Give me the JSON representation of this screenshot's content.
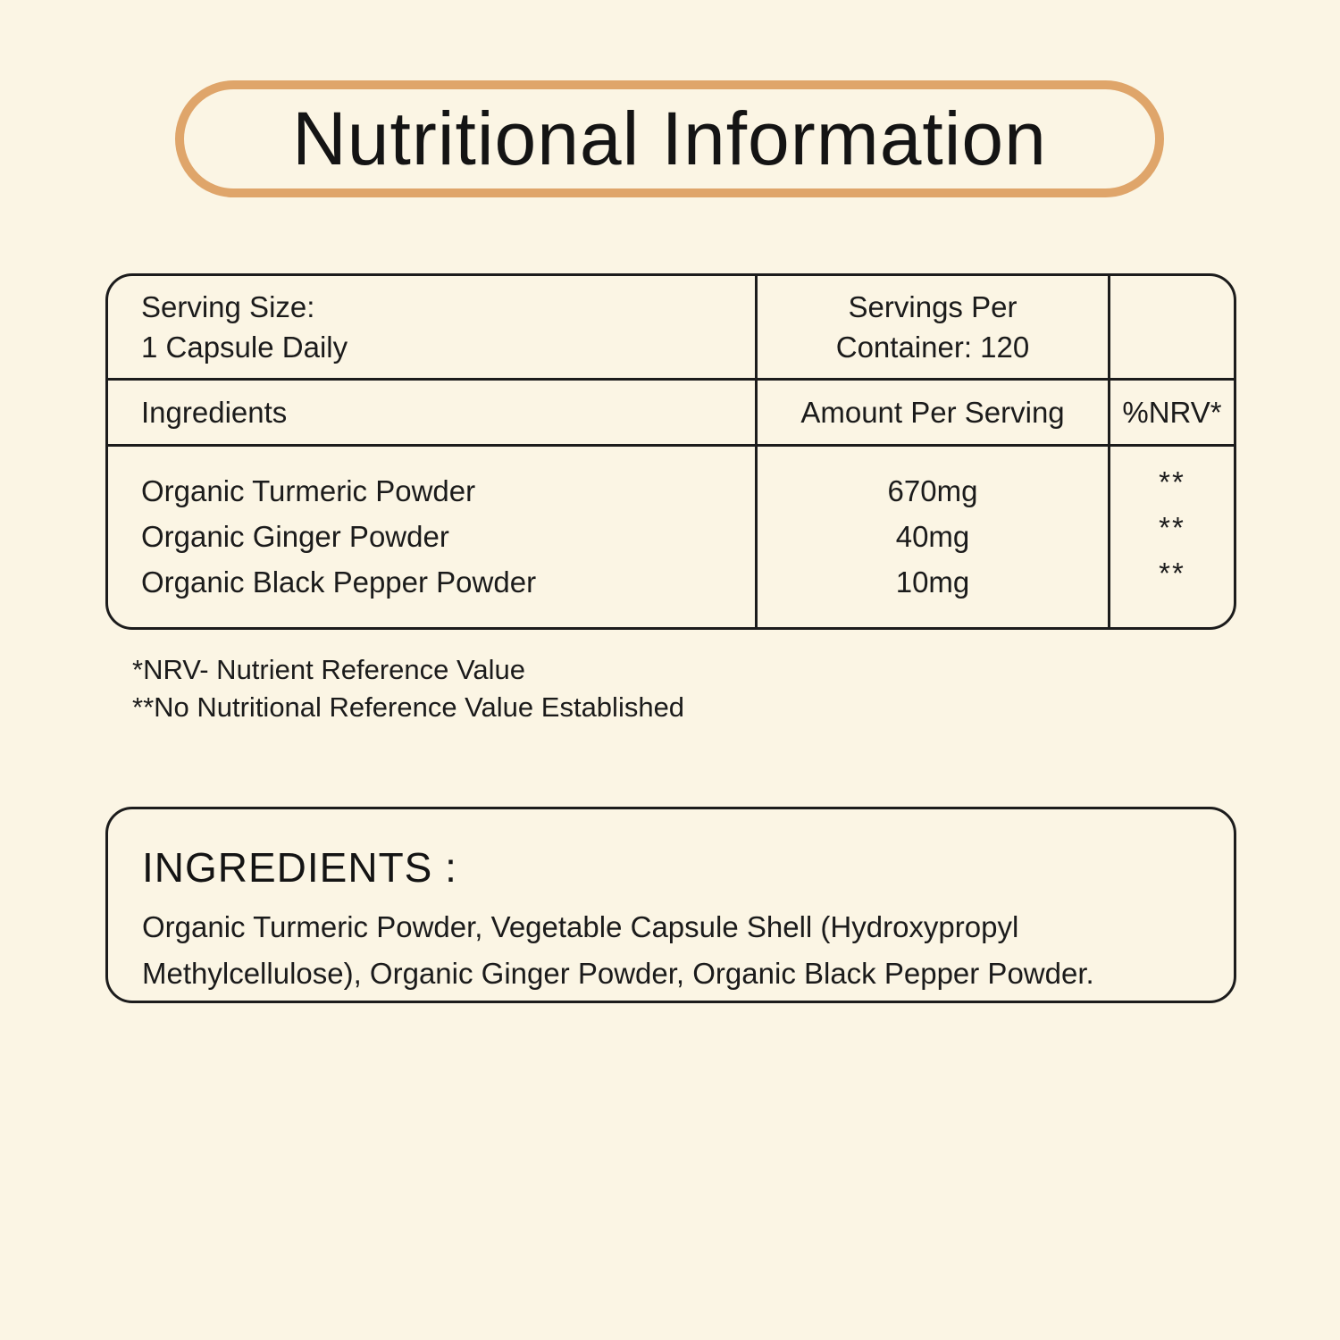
{
  "title": "Nutritional Information",
  "table": {
    "serving_size_label": "Serving Size:",
    "serving_size_value": "1 Capsule Daily",
    "servings_per_line1": "Servings Per",
    "servings_per_line2": "Container: 120",
    "columns": {
      "ingredients": "Ingredients",
      "amount": "Amount Per Serving",
      "nrv": "%NRV*"
    },
    "rows": [
      {
        "name": "Organic Turmeric Powder",
        "amount": "670mg",
        "nrv": "**"
      },
      {
        "name": "Organic Ginger Powder",
        "amount": "40mg",
        "nrv": "**"
      },
      {
        "name": "Organic Black Pepper Powder",
        "amount": "10mg",
        "nrv": "**"
      }
    ]
  },
  "footnotes": [
    "*NRV- Nutrient Reference Value",
    "**No Nutritional Reference Value Established"
  ],
  "ingredients_section": {
    "heading": "INGREDIENTS :",
    "text": "Organic Turmeric Powder, Vegetable Capsule Shell (Hydroxypropyl Methylcellulose), Organic Ginger Powder, Organic Black Pepper Powder."
  },
  "colors": {
    "background": "#fbf5e4",
    "accent_border": "#dfa56a",
    "line": "#1c1c1c",
    "text": "#1b1b1b"
  }
}
